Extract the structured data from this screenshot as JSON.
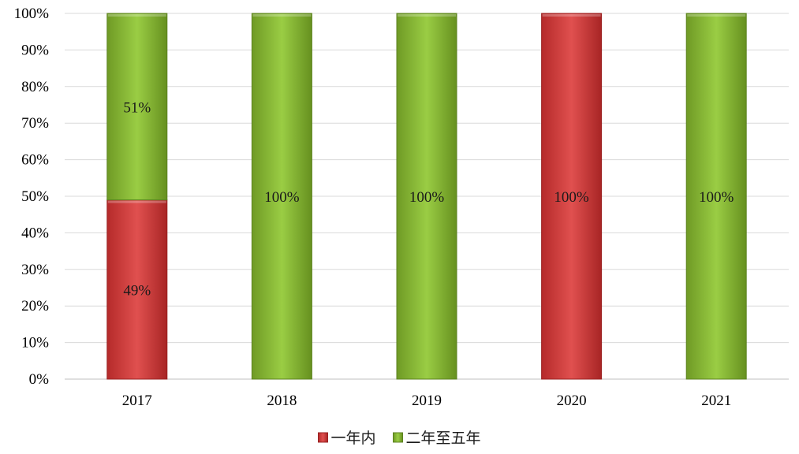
{
  "chart_data": {
    "type": "bar",
    "stacked": true,
    "percent": true,
    "categories": [
      "2017",
      "2018",
      "2019",
      "2020",
      "2021"
    ],
    "series": [
      {
        "name": "一年内",
        "color": "#d94040",
        "values": [
          49,
          0,
          0,
          100,
          0
        ],
        "labels": [
          "49%",
          "",
          "",
          "100%",
          ""
        ]
      },
      {
        "name": "二年至五年",
        "color": "#8fc13a",
        "values": [
          51,
          100,
          100,
          0,
          100
        ],
        "labels": [
          "51%",
          "100%",
          "100%",
          "",
          "100%"
        ]
      }
    ],
    "ylim": [
      0,
      100
    ],
    "yticks": [
      "0%",
      "10%",
      "20%",
      "30%",
      "40%",
      "50%",
      "60%",
      "70%",
      "80%",
      "90%",
      "100%"
    ],
    "grid": true,
    "legend_position": "bottom"
  }
}
